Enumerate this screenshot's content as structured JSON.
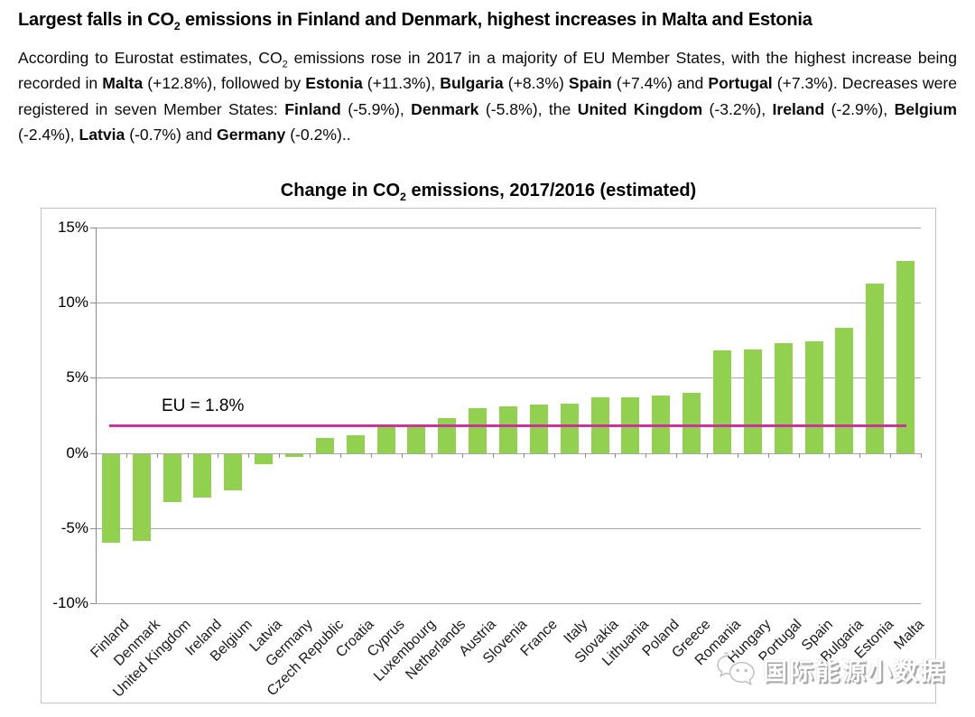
{
  "header": {
    "title_pre": "Largest falls in CO",
    "title_sub": "2",
    "title_post": " emissions in Finland and Denmark, highest increases in Malta and Estonia"
  },
  "summary": {
    "segments": [
      {
        "t": "According to Eurostat estimates, CO"
      },
      {
        "t": "2",
        "sub": true
      },
      {
        "t": " emissions rose in 2017 in a majority of EU Member States, with the highest increase being recorded in "
      },
      {
        "t": "Malta",
        "b": true
      },
      {
        "t": " (+12.8%), followed by "
      },
      {
        "t": "Estonia",
        "b": true
      },
      {
        "t": " (+11.3%), "
      },
      {
        "t": "Bulgaria",
        "b": true
      },
      {
        "t": " (+8.3%) "
      },
      {
        "t": "Spain",
        "b": true
      },
      {
        "t": " (+7.4%) and "
      },
      {
        "t": "Portugal",
        "b": true
      },
      {
        "t": " (+7.3%). Decreases were registered in seven Member States: "
      },
      {
        "t": "Finland",
        "b": true
      },
      {
        "t": " (-5.9%), "
      },
      {
        "t": "Denmark",
        "b": true
      },
      {
        "t": " (-5.8%), the "
      },
      {
        "t": "United Kingdom",
        "b": true
      },
      {
        "t": " (-3.2%), "
      },
      {
        "t": "Ireland",
        "b": true
      },
      {
        "t": " (-2.9%), "
      },
      {
        "t": "Belgium",
        "b": true
      },
      {
        "t": " (-2.4%), "
      },
      {
        "t": "Latvia",
        "b": true
      },
      {
        "t": " (-0.7%) and "
      },
      {
        "t": "Germany",
        "b": true
      },
      {
        "t": " (-0.2%).."
      }
    ]
  },
  "chart_data": {
    "type": "bar",
    "title": "Change in CO2 emissions, 2017/2016 (estimated)",
    "title_pre": "Change in CO",
    "title_sub": "2",
    "title_post": " emissions, 2017/2016 (estimated)",
    "categories": [
      "Finland",
      "Denmark",
      "United Kingdom",
      "Ireland",
      "Belgium",
      "Latvia",
      "Germany",
      "Czech Republic",
      "Croatia",
      "Cyprus",
      "Luxembourg",
      "Netherlands",
      "Austria",
      "Slovenia",
      "France",
      "Italy",
      "Slovakia",
      "Lithuania",
      "Poland",
      "Greece",
      "Romania",
      "Hungary",
      "Portugal",
      "Spain",
      "Bulgaria",
      "Estonia",
      "Malta"
    ],
    "values": [
      -5.9,
      -5.8,
      -3.2,
      -2.9,
      -2.4,
      -0.7,
      -0.2,
      1.0,
      1.2,
      1.7,
      1.8,
      2.3,
      3.0,
      3.1,
      3.2,
      3.3,
      3.7,
      3.7,
      3.8,
      4.0,
      6.8,
      6.9,
      7.3,
      7.4,
      8.3,
      11.3,
      12.8
    ],
    "xlabel": "",
    "ylabel": "",
    "ylim": [
      -10,
      15
    ],
    "yticks": [
      15,
      10,
      5,
      0,
      -5,
      -10
    ],
    "ytick_labels": [
      "15%",
      "10%",
      "5%",
      "0%",
      "-5%",
      "-10%"
    ],
    "grid": true,
    "legend": "none",
    "bar_color": "#92D050",
    "reference_line": {
      "label": "EU = 1.8%",
      "value": 1.8,
      "color": "#CC3399"
    }
  },
  "watermark": {
    "text": "国际能源小数据",
    "icon": "wechat-logo-icon"
  }
}
